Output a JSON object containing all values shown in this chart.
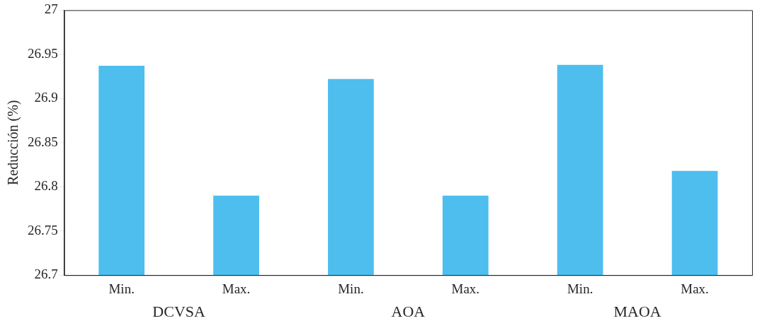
{
  "chart_data": {
    "type": "bar",
    "ylabel": "Reducción (%)",
    "categories": [
      "Min.",
      "Max.",
      "Min.",
      "Max.",
      "Min.",
      "Max."
    ],
    "series": [
      {
        "color": "#4dbeee",
        "values": [
          26.937,
          26.79,
          26.922,
          26.79,
          26.938,
          26.818
        ]
      }
    ],
    "ylim": [
      26.7,
      27
    ],
    "yticks": [
      26.7,
      26.75,
      26.8,
      26.85,
      26.9,
      26.95,
      27
    ],
    "annotations": [
      "DCVSA",
      "AOA",
      "MAOA"
    ],
    "grid": false,
    "legend": false
  }
}
